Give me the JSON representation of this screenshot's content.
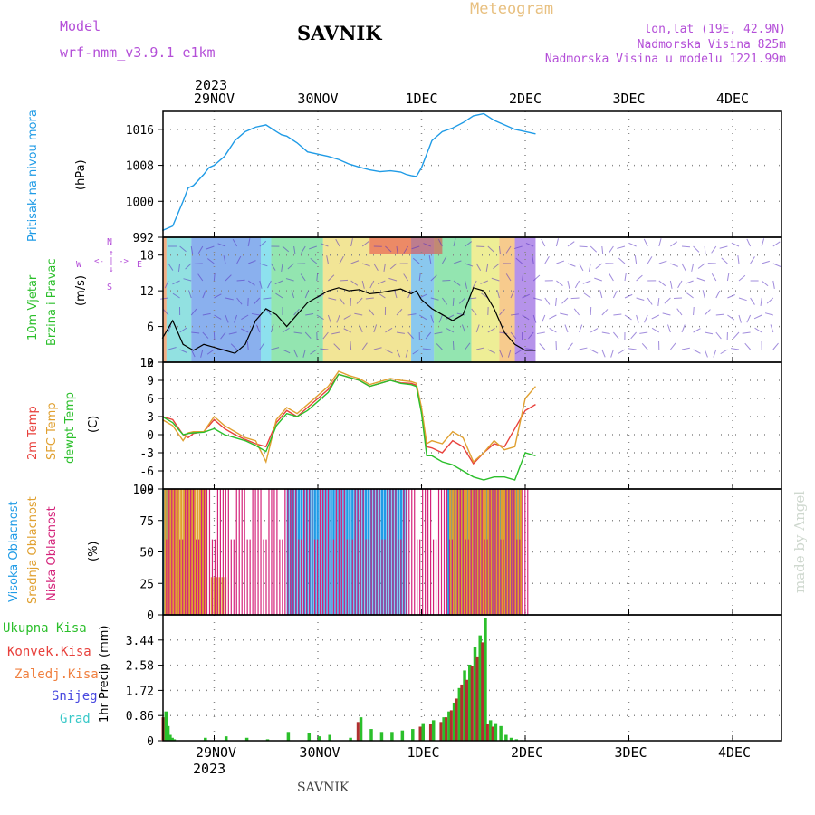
{
  "header": {
    "model_label": "Model",
    "model_name": "wrf-nmm_v3.9.1 e1km",
    "station": "SAVNIK",
    "title": "Meteogram",
    "lonlat": "lon,lat (19E, 42.9N)",
    "elevation": "Nadmorska Visina 825m",
    "model_elevation": "Nadmorska Visina u modelu 1221.99m",
    "credit": "made by Angel",
    "footer_station": "SAVNIK"
  },
  "colors": {
    "pressure": "#1f9be6",
    "temp2m": "#e8413c",
    "sfc_temp": "#e0a030",
    "dewpt": "#2bbf2b",
    "high_cloud": "#1f9be6",
    "mid_cloud": "#e0a030",
    "low_cloud": "#d4237a",
    "precip_total": "#2bbf2b",
    "precip_conv": "#b03030",
    "magenta_text": "#b44fd8",
    "orange_text": "#e0b060"
  },
  "chart_data": {
    "type": "line",
    "time_axis": {
      "top_labels": [
        "29NOV",
        "30NOV",
        "1DEC",
        "2DEC",
        "3DEC",
        "4DEC"
      ],
      "bottom_labels": [
        "29NOV",
        "30NOV",
        "1DEC",
        "2DEC",
        "3DEC",
        "4DEC"
      ],
      "year": "2023",
      "range_days": [
        0,
        3.6
      ]
    },
    "panels": [
      {
        "id": "pressure",
        "type": "line",
        "ylabels": [
          "Pritisak na nivou mora",
          "(hPa)"
        ],
        "yticks": [
          "1016",
          "1008",
          "1000",
          "992"
        ],
        "ylim": [
          992,
          1020
        ],
        "series": [
          {
            "x": [
              0,
              0.1,
              0.2,
              0.25,
              0.3,
              0.4,
              0.45,
              0.5,
              0.6,
              0.7,
              0.8,
              0.9,
              1.0,
              1.1,
              1.15,
              1.2,
              1.3,
              1.4,
              1.5,
              1.6,
              1.7,
              1.8,
              1.9,
              2.0,
              2.1,
              2.2,
              2.3,
              2.35,
              2.4,
              2.45,
              2.5,
              2.6,
              2.7,
              2.8,
              2.9,
              3.0,
              3.1,
              3.2,
              3.3,
              3.4,
              3.5,
              3.6
            ],
            "values": [
              993.5,
              994.5,
              1000,
              1003,
              1003.5,
              1006,
              1007.5,
              1008,
              1010,
              1013.5,
              1015.5,
              1016.5,
              1017,
              1015.5,
              1014.8,
              1014.5,
              1013,
              1011,
              1010.5,
              1010,
              1009.3,
              1008.3,
              1007.6,
              1007,
              1006.6,
              1006.8,
              1006.5,
              1006,
              1005.7,
              1005.5,
              1007.5,
              1013.5,
              1015.5,
              1016.3,
              1017.5,
              1019,
              1019.5,
              1018,
              1017,
              1016,
              1015.5,
              1015
            ]
          }
        ]
      },
      {
        "id": "wind",
        "type": "line",
        "ylabels": [
          "10m Vjetar",
          "Brzina i Pravac"
        ],
        "unit": "(m/s)",
        "legend": [
          "W",
          "E",
          "N",
          "S"
        ],
        "yticks": [
          "18",
          "12",
          "6",
          "0"
        ],
        "ylim": [
          0,
          21
        ],
        "series": [
          {
            "x": [
              0,
              0.1,
              0.2,
              0.3,
              0.4,
              0.5,
              0.6,
              0.7,
              0.8,
              0.9,
              1.0,
              1.1,
              1.2,
              1.3,
              1.4,
              1.5,
              1.6,
              1.7,
              1.8,
              1.9,
              2.0,
              2.1,
              2.2,
              2.3,
              2.4,
              2.45,
              2.5,
              2.6,
              2.7,
              2.8,
              2.9,
              3.0,
              3.1,
              3.2,
              3.3,
              3.4,
              3.5,
              3.6
            ],
            "values": [
              4,
              7,
              3,
              2,
              3,
              2.5,
              2,
              1.5,
              3,
              7,
              9,
              8,
              6,
              8,
              10,
              11,
              12,
              12.5,
              12,
              12.2,
              11.5,
              11.7,
              12,
              12.3,
              11.5,
              12,
              10.5,
              9,
              8,
              7,
              8,
              12.5,
              12,
              9,
              5,
              3,
              2,
              2
            ]
          }
        ]
      },
      {
        "id": "temperature",
        "type": "line",
        "ylabels": [
          "2m Temp",
          "SFC Temp",
          "dewpt Temp"
        ],
        "unit": "(C)",
        "yticks": [
          "12",
          "9",
          "6",
          "3",
          "0",
          "-3",
          "-6",
          "-9"
        ],
        "ylim": [
          -9,
          12
        ],
        "series": [
          {
            "name": "2m Temp",
            "x": [
              0,
              0.1,
              0.2,
              0.25,
              0.3,
              0.4,
              0.5,
              0.6,
              0.7,
              0.8,
              0.9,
              1.0,
              1.1,
              1.2,
              1.3,
              1.4,
              1.5,
              1.6,
              1.7,
              1.8,
              1.9,
              2.0,
              2.1,
              2.2,
              2.3,
              2.4,
              2.45,
              2.5,
              2.55,
              2.6,
              2.7,
              2.8,
              2.9,
              3.0,
              3.1,
              3.2,
              3.3,
              3.4,
              3.5,
              3.6
            ],
            "values": [
              3,
              2.5,
              0,
              -0.5,
              0.2,
              0.5,
              2.5,
              1,
              0,
              -0.8,
              -1.5,
              -2,
              2,
              4,
              3,
              4.5,
              6,
              7.5,
              10,
              9.5,
              9,
              8,
              8.5,
              9,
              8.6,
              8.5,
              8.2,
              4,
              -2,
              -2.2,
              -3,
              -1,
              -2,
              -4.8,
              -3,
              -1.5,
              -2,
              1,
              4,
              5
            ]
          },
          {
            "name": "SFC Temp",
            "x": [
              0,
              0.1,
              0.2,
              0.25,
              0.3,
              0.4,
              0.5,
              0.6,
              0.7,
              0.8,
              0.9,
              1.0,
              1.1,
              1.2,
              1.3,
              1.4,
              1.5,
              1.6,
              1.7,
              1.8,
              1.9,
              2.0,
              2.1,
              2.2,
              2.3,
              2.4,
              2.45,
              2.5,
              2.55,
              2.6,
              2.7,
              2.8,
              2.9,
              3.0,
              3.1,
              3.2,
              3.3,
              3.4,
              3.5,
              3.6
            ],
            "values": [
              2.5,
              1.5,
              -1,
              0.3,
              0.5,
              0.5,
              3,
              1.5,
              0.5,
              -0.5,
              -1,
              -4.5,
              2.5,
              4.5,
              3.5,
              5,
              6.5,
              8,
              10.5,
              9.8,
              9.3,
              8.3,
              8.8,
              9.3,
              9,
              8.8,
              8.5,
              4.5,
              -1.5,
              -1,
              -1.5,
              0.5,
              -0.5,
              -4.5,
              -3,
              -1,
              -2.5,
              -2,
              6,
              8
            ]
          },
          {
            "name": "dewpt Temp",
            "x": [
              0,
              0.1,
              0.2,
              0.25,
              0.3,
              0.4,
              0.5,
              0.6,
              0.7,
              0.8,
              0.9,
              1.0,
              1.1,
              1.2,
              1.3,
              1.4,
              1.5,
              1.6,
              1.7,
              1.8,
              1.9,
              2.0,
              2.1,
              2.2,
              2.3,
              2.4,
              2.45,
              2.5,
              2.55,
              2.6,
              2.7,
              2.8,
              2.9,
              3.0,
              3.1,
              3.2,
              3.3,
              3.4,
              3.5,
              3.6
            ],
            "values": [
              3,
              2,
              0,
              0.2,
              0.3,
              0.4,
              1,
              0,
              -0.5,
              -1,
              -1.8,
              -2.8,
              1.5,
              3.5,
              3,
              4,
              5.5,
              7,
              10,
              9.5,
              9,
              8,
              8.5,
              9,
              8.5,
              8.3,
              8,
              3.5,
              -3.5,
              -3.5,
              -4.5,
              -5,
              -6,
              -7,
              -7.5,
              -7,
              -7,
              -7.5,
              -3,
              -3.5
            ]
          }
        ]
      },
      {
        "id": "clouds",
        "type": "bar",
        "ylabels": [
          "Visoka Oblacnost",
          "Srednja Oblacnost",
          "Niska Oblacnost"
        ],
        "unit": "(%)",
        "yticks": [
          "100",
          "75",
          "50",
          "25",
          "0"
        ],
        "ylim": [
          0,
          100
        ],
        "series": [
          {
            "name": "Visoka Oblacnost",
            "ranges_days": [
              [
                0.0,
                0.05
              ],
              [
                1.2,
                2.35
              ],
              [
                2.75,
                3.45
              ]
            ],
            "values": [
              100,
              100,
              100
            ]
          },
          {
            "name": "Srednja Oblacnost",
            "ranges_days": [
              [
                0.0,
                0.4
              ],
              [
                0.45,
                0.6
              ],
              [
                2.75,
                3.45
              ]
            ],
            "values": [
              100,
              30,
              100
            ]
          },
          {
            "name": "Niska Oblacnost",
            "ranges_days": [
              [
                0.0,
                3.5
              ]
            ],
            "values": [
              100
            ]
          }
        ]
      },
      {
        "id": "precip",
        "type": "bar",
        "ylabels": [
          "1hr Precip",
          "(mm)"
        ],
        "legend": [
          "Ukupna Kisa",
          "Konvek.Kisa",
          "Zaledj.Kisa",
          "Snijeg",
          "Grad"
        ],
        "yticks": [
          "3.44",
          "2.58",
          "1.72",
          "0.86",
          "0"
        ],
        "ylim": [
          0,
          4.3
        ],
        "series": [
          {
            "name": "Ukupna Kisa",
            "x": [
              0.02,
              0.04,
              0.06,
              0.08,
              0.1,
              0.4,
              0.6,
              0.8,
              1.0,
              1.2,
              1.4,
              1.5,
              1.6,
              1.8,
              1.9,
              2.0,
              2.1,
              2.2,
              2.3,
              2.4,
              2.5,
              2.6,
              2.7,
              2.75,
              2.8,
              2.85,
              2.9,
              2.95,
              3.0,
              3.05,
              3.1,
              3.15,
              3.2,
              3.25,
              3.3,
              3.35,
              3.4,
              3.45
            ],
            "values": [
              1.0,
              0.5,
              0.2,
              0.1,
              0.05,
              0.1,
              0.15,
              0.1,
              0.05,
              0.3,
              0.25,
              0.15,
              0.2,
              0.1,
              0.8,
              0.4,
              0.3,
              0.3,
              0.35,
              0.4,
              0.6,
              0.7,
              0.8,
              1.0,
              1.3,
              1.8,
              2.4,
              2.6,
              3.2,
              3.6,
              4.2,
              0.7,
              0.6,
              0.5,
              0.2,
              0.1,
              0.05,
              0.02
            ]
          }
        ]
      }
    ]
  }
}
